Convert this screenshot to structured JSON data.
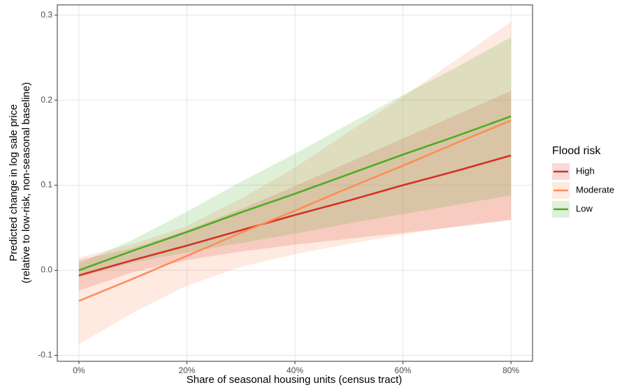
{
  "chart_data": {
    "type": "line-ribbon",
    "x_label": "Share of seasonal housing units (census tract)",
    "y_label": [
      "Predicted change in log sale price",
      "(relative to low-risk, non-seasonal baseline)"
    ],
    "x": [
      0,
      10,
      20,
      30,
      40,
      50,
      60,
      70,
      80
    ],
    "xlim": [
      -4,
      84
    ],
    "xticks": [
      {
        "value": 0,
        "label": "0%"
      },
      {
        "value": 20,
        "label": "20%"
      },
      {
        "value": 40,
        "label": "40%"
      },
      {
        "value": 60,
        "label": "60%"
      },
      {
        "value": 80,
        "label": "80%"
      }
    ],
    "ylim": [
      -0.107,
      0.312
    ],
    "yticks": [
      -0.1,
      {
        "value": 0,
        "label": "0.0"
      },
      0.1,
      0.2,
      0.3
    ],
    "grid": true,
    "legend_title": "Flood risk",
    "legend_position": "right",
    "series": [
      {
        "name": "High",
        "color": "#d73027",
        "values": [
          -0.006,
          0.012,
          0.029,
          0.047,
          0.065,
          0.082,
          0.1,
          0.117,
          0.135
        ],
        "lower": [
          -0.024,
          -0.002,
          0.012,
          0.022,
          0.03,
          0.037,
          0.044,
          0.051,
          0.059
        ],
        "upper": [
          0.012,
          0.026,
          0.047,
          0.072,
          0.099,
          0.127,
          0.155,
          0.183,
          0.211
        ]
      },
      {
        "name": "Moderate",
        "color": "#fc8d59",
        "values": [
          -0.036,
          -0.01,
          0.017,
          0.044,
          0.07,
          0.097,
          0.123,
          0.15,
          0.176
        ],
        "lower": [
          -0.087,
          -0.05,
          -0.018,
          0.004,
          0.019,
          0.031,
          0.042,
          0.052,
          0.06
        ],
        "upper": [
          0.015,
          0.031,
          0.052,
          0.084,
          0.121,
          0.163,
          0.204,
          0.248,
          0.292
        ]
      },
      {
        "name": "Low",
        "color": "#4dac26",
        "values": [
          0.0,
          0.023,
          0.045,
          0.068,
          0.09,
          0.113,
          0.136,
          0.158,
          0.181
        ],
        "lower": [
          -0.008,
          0.009,
          0.021,
          0.032,
          0.043,
          0.055,
          0.066,
          0.077,
          0.088
        ],
        "upper": [
          0.008,
          0.036,
          0.069,
          0.104,
          0.137,
          0.172,
          0.206,
          0.239,
          0.274
        ]
      }
    ]
  }
}
